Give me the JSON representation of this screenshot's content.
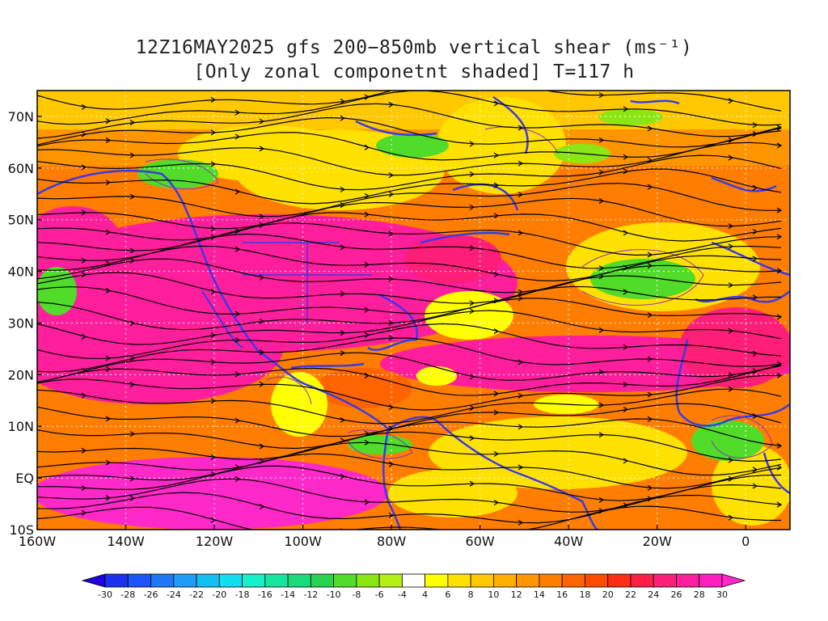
{
  "title": {
    "line1": "12Z16MAY2025 gfs 200−850mb vertical shear (ms⁻¹)",
    "line2": "[Only zonal componetnt shaded] T=117 h"
  },
  "map": {
    "lon_range": [
      -160,
      10
    ],
    "lat_range": [
      -10,
      75
    ],
    "x_ticks": [
      {
        "lon": -160,
        "label": "160W"
      },
      {
        "lon": -140,
        "label": "140W"
      },
      {
        "lon": -120,
        "label": "120W"
      },
      {
        "lon": -100,
        "label": "100W"
      },
      {
        "lon": -80,
        "label": "80W"
      },
      {
        "lon": -60,
        "label": "60W"
      },
      {
        "lon": -40,
        "label": "40W"
      },
      {
        "lon": -20,
        "label": "20W"
      },
      {
        "lon": 0,
        "label": "0"
      }
    ],
    "y_ticks": [
      {
        "lat": 70,
        "label": "70N"
      },
      {
        "lat": 60,
        "label": "60N"
      },
      {
        "lat": 50,
        "label": "50N"
      },
      {
        "lat": 40,
        "label": "40N"
      },
      {
        "lat": 30,
        "label": "30N"
      },
      {
        "lat": 20,
        "label": "20N"
      },
      {
        "lat": 10,
        "label": "10N"
      },
      {
        "lat": 0,
        "label": "EQ"
      },
      {
        "lat": -10,
        "label": "10S"
      }
    ],
    "coast_color": "#3a3ae8",
    "contour_color": "#9a2fbf",
    "streamline_color": "#000000"
  },
  "colorbar": {
    "labels": [
      "-30",
      "-28",
      "-26",
      "-24",
      "-22",
      "-20",
      "-18",
      "-16",
      "-14",
      "-12",
      "-10",
      "-8",
      "-6",
      "-4",
      "4",
      "6",
      "8",
      "10",
      "12",
      "14",
      "16",
      "18",
      "20",
      "22",
      "24",
      "26",
      "28",
      "30"
    ],
    "colors": [
      "#1e00e0",
      "#1a32f0",
      "#1e55f8",
      "#1e78f8",
      "#1e9cf8",
      "#14bff2",
      "#10e0ee",
      "#14f0c8",
      "#14e6a0",
      "#19dc78",
      "#28d250",
      "#50dc28",
      "#8ce614",
      "#b4f014",
      "#ffffff",
      "#ffff00",
      "#ffe100",
      "#ffc800",
      "#ffaf00",
      "#ff9600",
      "#ff7d00",
      "#ff6400",
      "#ff4b00",
      "#ff2d14",
      "#ff1e46",
      "#ff1e78",
      "#ff1e9b",
      "#ff1ebe",
      "#ff28c8"
    ]
  }
}
